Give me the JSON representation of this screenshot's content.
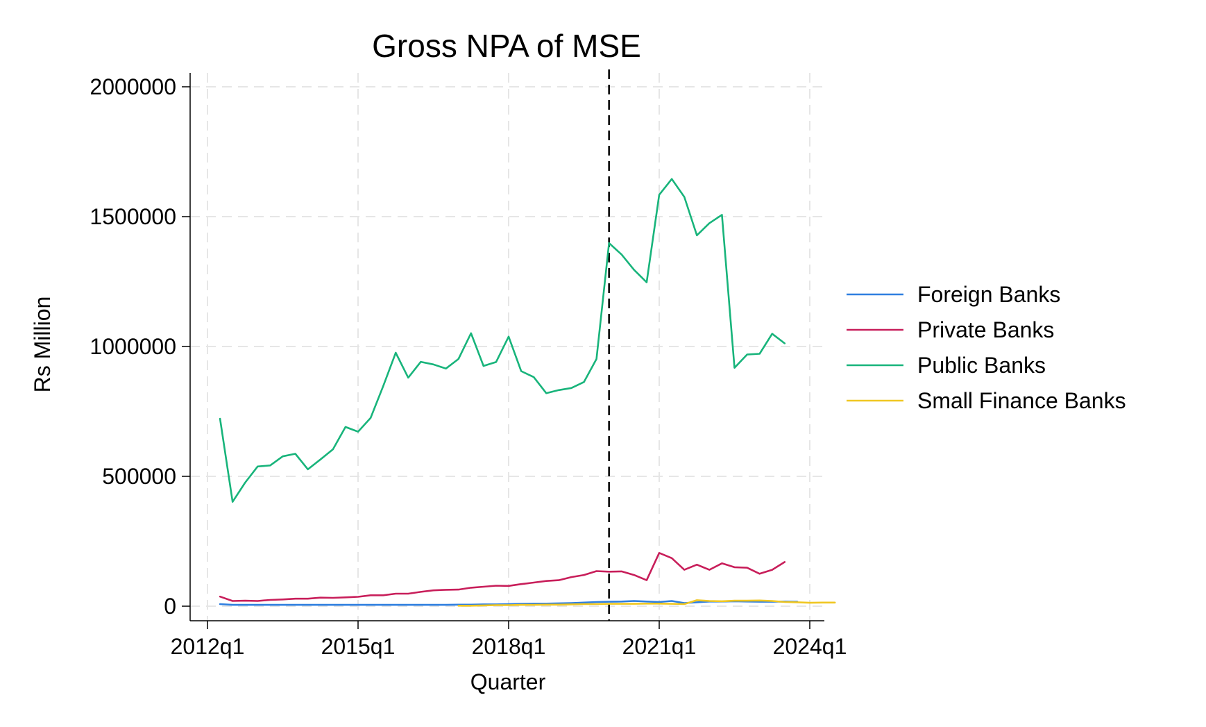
{
  "chart_data": {
    "type": "line",
    "title": "Gross NPA of MSE",
    "xlabel": "Quarter",
    "ylabel": "Rs Million",
    "ylim": [
      0,
      2000000
    ],
    "y_ticks": [
      0,
      500000,
      1000000,
      1500000,
      2000000
    ],
    "y_tick_labels": [
      "0",
      "500000",
      "1000000",
      "1500000",
      "2000000"
    ],
    "x_ticks": [
      "2012q1",
      "2015q1",
      "2018q1",
      "2021q1",
      "2024q1"
    ],
    "x_range": [
      "2012q1",
      "2024q1"
    ],
    "grid": true,
    "legend_position": "right",
    "reference_line": {
      "x": "2020q1",
      "style": "dashed",
      "color": "#000000"
    },
    "series": [
      {
        "name": "Foreign Banks",
        "color": "#2f7fe0",
        "start": "2012q2",
        "values": [
          8000,
          5000,
          5000,
          5000,
          5000,
          5000,
          5000,
          5000,
          5000,
          5000,
          5000,
          5000,
          5000,
          5000,
          5000,
          5000,
          5000,
          5000,
          5000,
          6000,
          6000,
          7000,
          7000,
          8000,
          9000,
          10000,
          10000,
          11000,
          12000,
          14000,
          16000,
          17000,
          18000,
          20000,
          18000,
          16000,
          20000,
          12000,
          15000,
          18000,
          18000,
          19000,
          18000,
          17000,
          17000,
          18000,
          17000
        ]
      },
      {
        "name": "Private Banks",
        "color": "#c81e5a",
        "start": "2012q2",
        "values": [
          37000,
          20000,
          21000,
          20000,
          24000,
          26000,
          29000,
          29000,
          33000,
          32000,
          34000,
          36000,
          42000,
          42000,
          48000,
          48000,
          55000,
          61000,
          63000,
          64000,
          71000,
          75000,
          79000,
          78000,
          85000,
          91000,
          97000,
          100000,
          112000,
          120000,
          135000,
          133000,
          134000,
          120000,
          100000,
          205000,
          185000,
          140000,
          160000,
          140000,
          165000,
          150000,
          148000,
          125000,
          140000,
          170000
        ]
      },
      {
        "name": "Public Banks",
        "color": "#18b47b",
        "start": "2012q2",
        "values": [
          722000,
          402000,
          476000,
          538000,
          542000,
          577000,
          587000,
          527000,
          565000,
          604000,
          690000,
          672000,
          725000,
          847000,
          976000,
          880000,
          941000,
          931000,
          915000,
          952000,
          1051000,
          925000,
          940000,
          1038000,
          905000,
          882000,
          820000,
          832000,
          840000,
          863000,
          952000,
          1398000,
          1354000,
          1295000,
          1247000,
          1584000,
          1645000,
          1576000,
          1428000,
          1475000,
          1507000,
          918000,
          969000,
          972000,
          1049000,
          1012000
        ]
      },
      {
        "name": "Small Finance Banks",
        "color": "#f0c722",
        "start": "2017q1",
        "values": [
          2000,
          2000,
          3000,
          4000,
          4000,
          5000,
          5000,
          6000,
          6000,
          7000,
          8000,
          8000,
          9000,
          9000,
          9000,
          10000,
          10000,
          9000,
          8000,
          23000,
          20000,
          19000,
          21000,
          21000,
          22000,
          20000,
          16000,
          15000,
          13000,
          14000,
          14000
        ]
      }
    ]
  }
}
